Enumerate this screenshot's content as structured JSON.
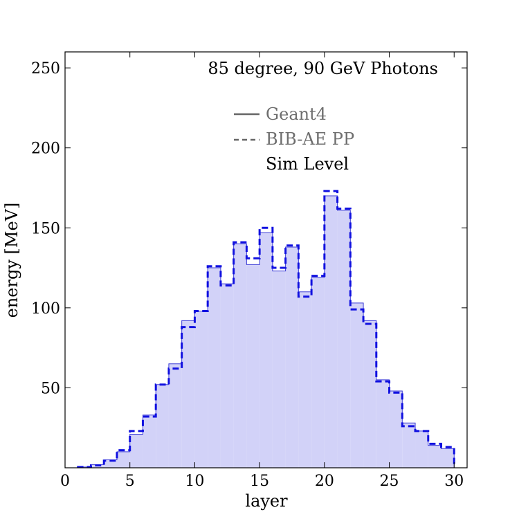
{
  "chart_data": {
    "type": "histogram-step",
    "annotation": "85 degree, 90 GeV Photons",
    "xlabel": "layer",
    "ylabel": "energy [MeV]",
    "xlim": [
      0,
      31
    ],
    "ylim": [
      0,
      260
    ],
    "xticks": [
      0,
      5,
      10,
      15,
      20,
      25,
      30
    ],
    "yticks": [
      50,
      100,
      150,
      200,
      250
    ],
    "bin_edges": [
      1,
      2,
      3,
      4,
      5,
      6,
      7,
      8,
      9,
      10,
      11,
      12,
      13,
      14,
      15,
      16,
      17,
      18,
      19,
      20,
      21,
      22,
      23,
      24,
      25,
      26,
      27,
      28,
      29,
      30
    ],
    "series": [
      {
        "name": "Geant4",
        "style": "solid filled",
        "color": "#3b3bd6",
        "fill": "#d2d2f8",
        "values": [
          0.5,
          2,
          5,
          10,
          21,
          33,
          52,
          65,
          92,
          98,
          125,
          115,
          140,
          127,
          147,
          123,
          138,
          110,
          119,
          170,
          161,
          103,
          92,
          55,
          48,
          28,
          23,
          14,
          12
        ]
      },
      {
        "name": "BIB-AE PP",
        "style": "dashed",
        "color": "#1010e0",
        "values": [
          0.5,
          1.5,
          4.5,
          11,
          23,
          32,
          52,
          62,
          88,
          98,
          126,
          114,
          141,
          131,
          150,
          125,
          139,
          107,
          120,
          173,
          162,
          99,
          90,
          54,
          47,
          26,
          23,
          15,
          13
        ]
      }
    ],
    "legend": {
      "entries": [
        "Geant4",
        "BIB-AE PP"
      ],
      "extra_text": "Sim Level",
      "text_color": "#6e6e6e",
      "extra_text_color": "#000000"
    }
  }
}
